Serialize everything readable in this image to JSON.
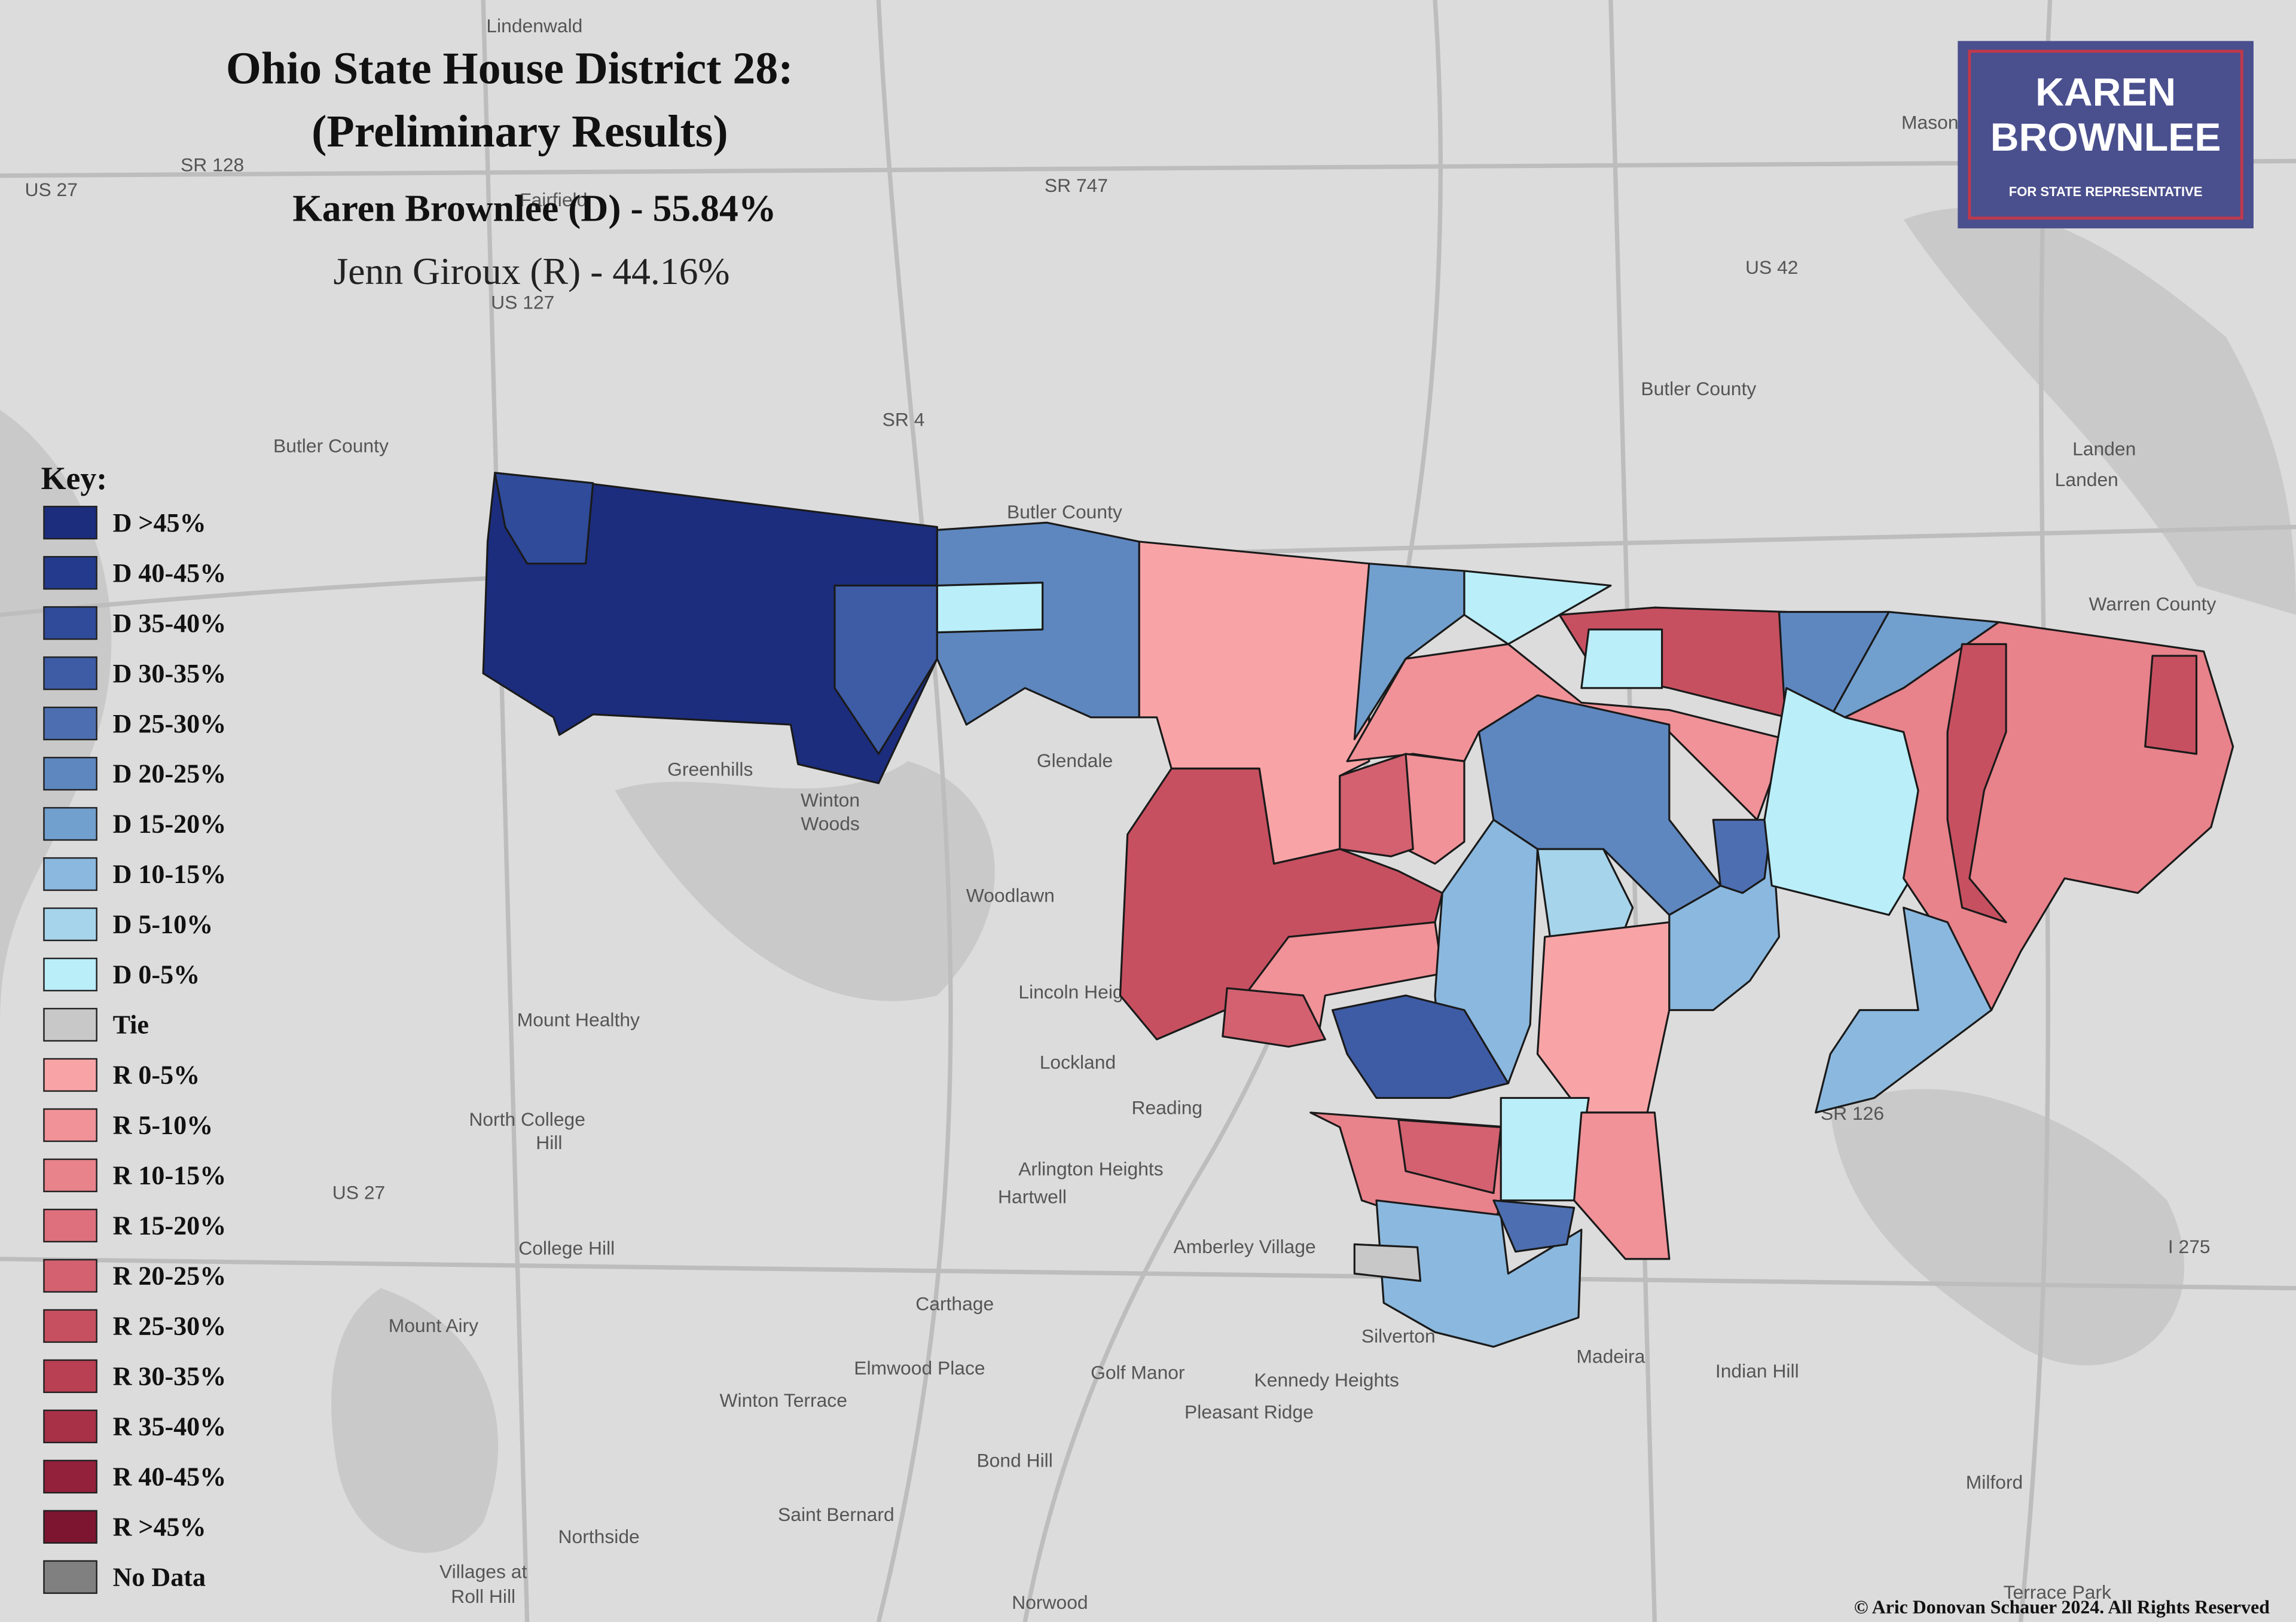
{
  "header": {
    "title_line1": "Ohio State House District 28:",
    "title_line2": "(Preliminary Results)",
    "winner": "Karen Brownlee (D) - 55.84%",
    "runner_up": "Jenn Giroux (R) - 44.16%"
  },
  "logo": {
    "line1": "KAREN",
    "line2": "BROWNLEE",
    "tagline": "FOR STATE REPRESENTATIVE"
  },
  "legend": {
    "title": "Key:",
    "items": [
      {
        "label": "D >45%",
        "color": "#1c2d7e"
      },
      {
        "label": "D 40-45%",
        "color": "#243a8c"
      },
      {
        "label": "D 35-40%",
        "color": "#2f4b99"
      },
      {
        "label": "D 30-35%",
        "color": "#3e5ca5"
      },
      {
        "label": "D 25-30%",
        "color": "#4d6fb1"
      },
      {
        "label": "D 20-25%",
        "color": "#5e87bf"
      },
      {
        "label": "D 15-20%",
        "color": "#719fce"
      },
      {
        "label": "D 10-15%",
        "color": "#8bb8de"
      },
      {
        "label": "D 5-10%",
        "color": "#a6d4eb"
      },
      {
        "label": "D 0-5%",
        "color": "#baeef9"
      },
      {
        "label": "Tie",
        "color": "#c8c8c8"
      },
      {
        "label": "R 0-5%",
        "color": "#f8a4a7"
      },
      {
        "label": "R 5-10%",
        "color": "#f09298"
      },
      {
        "label": "R 10-15%",
        "color": "#e8828b"
      },
      {
        "label": "R 15-20%",
        "color": "#de707d"
      },
      {
        "label": "R 20-25%",
        "color": "#d36170"
      },
      {
        "label": "R 25-30%",
        "color": "#c75060"
      },
      {
        "label": "R 30-35%",
        "color": "#b93f53"
      },
      {
        "label": "R 35-40%",
        "color": "#a83148"
      },
      {
        "label": "R 40-45%",
        "color": "#94213b"
      },
      {
        "label": "R >45%",
        "color": "#7d1530"
      },
      {
        "label": "No Data",
        "color": "#808080"
      }
    ]
  },
  "map_labels": [
    "Lindenwald",
    "Fairfield",
    "SR 128",
    "US 27",
    "SR 747",
    "US 127",
    "US 42",
    "Mason",
    "SR 4",
    "Butler County",
    "Butler County",
    "Landen",
    "Landen",
    "Warren County",
    "Glendale",
    "Greenhills",
    "Winton",
    "Woods",
    "Woodlawn",
    "Lincoln Heights",
    "Mount Healthy",
    "Lockland",
    "Reading",
    "North College",
    "Hill",
    "Arlington Heights",
    "Hartwell",
    "US 27",
    "College Hill",
    "Amberley Village",
    "Carthage",
    "Mount Airy",
    "Silverton",
    "Madeira",
    "Indian Hill",
    "Elmwood Place",
    "Golf Manor",
    "Kennedy Heights",
    "Winton Terrace",
    "Pleasant Ridge",
    "Bond Hill",
    "Saint Bernard",
    "Milford",
    "Northside",
    "Villages at",
    "Roll Hill",
    "Norwood",
    "I 275",
    "Terrace Park",
    "SR 126",
    "Butler County"
  ],
  "copyright": "© Aric Donovan Schauer 2024. All Rights Reserved"
}
